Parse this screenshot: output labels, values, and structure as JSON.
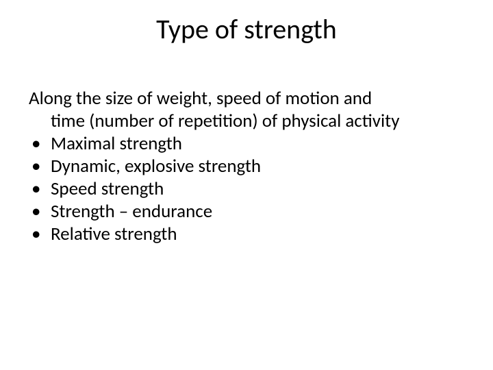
{
  "slide": {
    "title": "Type of strength",
    "intro_line1": "Along the size of weight, speed of motion and",
    "intro_line2": "time (number of repetition) of physical activity",
    "bullets": [
      "Maximal strength",
      "Dynamic, explosive strength",
      "Speed strength",
      "Strength – endurance",
      "Relative strength"
    ],
    "colors": {
      "background": "#ffffff",
      "text": "#000000"
    },
    "fontsize": {
      "title": 40,
      "body": 27
    }
  }
}
